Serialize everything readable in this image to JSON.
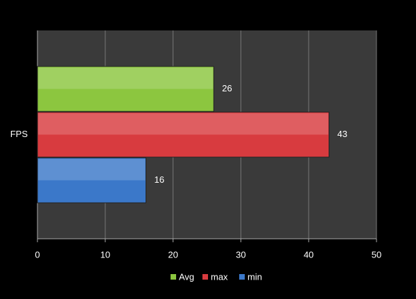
{
  "chart_data": {
    "type": "bar",
    "orientation": "horizontal",
    "categories": [
      "FPS"
    ],
    "series": [
      {
        "name": "Avg",
        "color": "#8cc63f",
        "values": [
          26
        ]
      },
      {
        "name": "max",
        "color": "#d83b3f",
        "values": [
          43
        ]
      },
      {
        "name": "min",
        "color": "#3b78c9",
        "values": [
          16
        ]
      }
    ],
    "xlim": [
      0,
      50
    ],
    "xticks": [
      0,
      10,
      20,
      30,
      40,
      50
    ],
    "grid": true,
    "legend": "bottom"
  }
}
